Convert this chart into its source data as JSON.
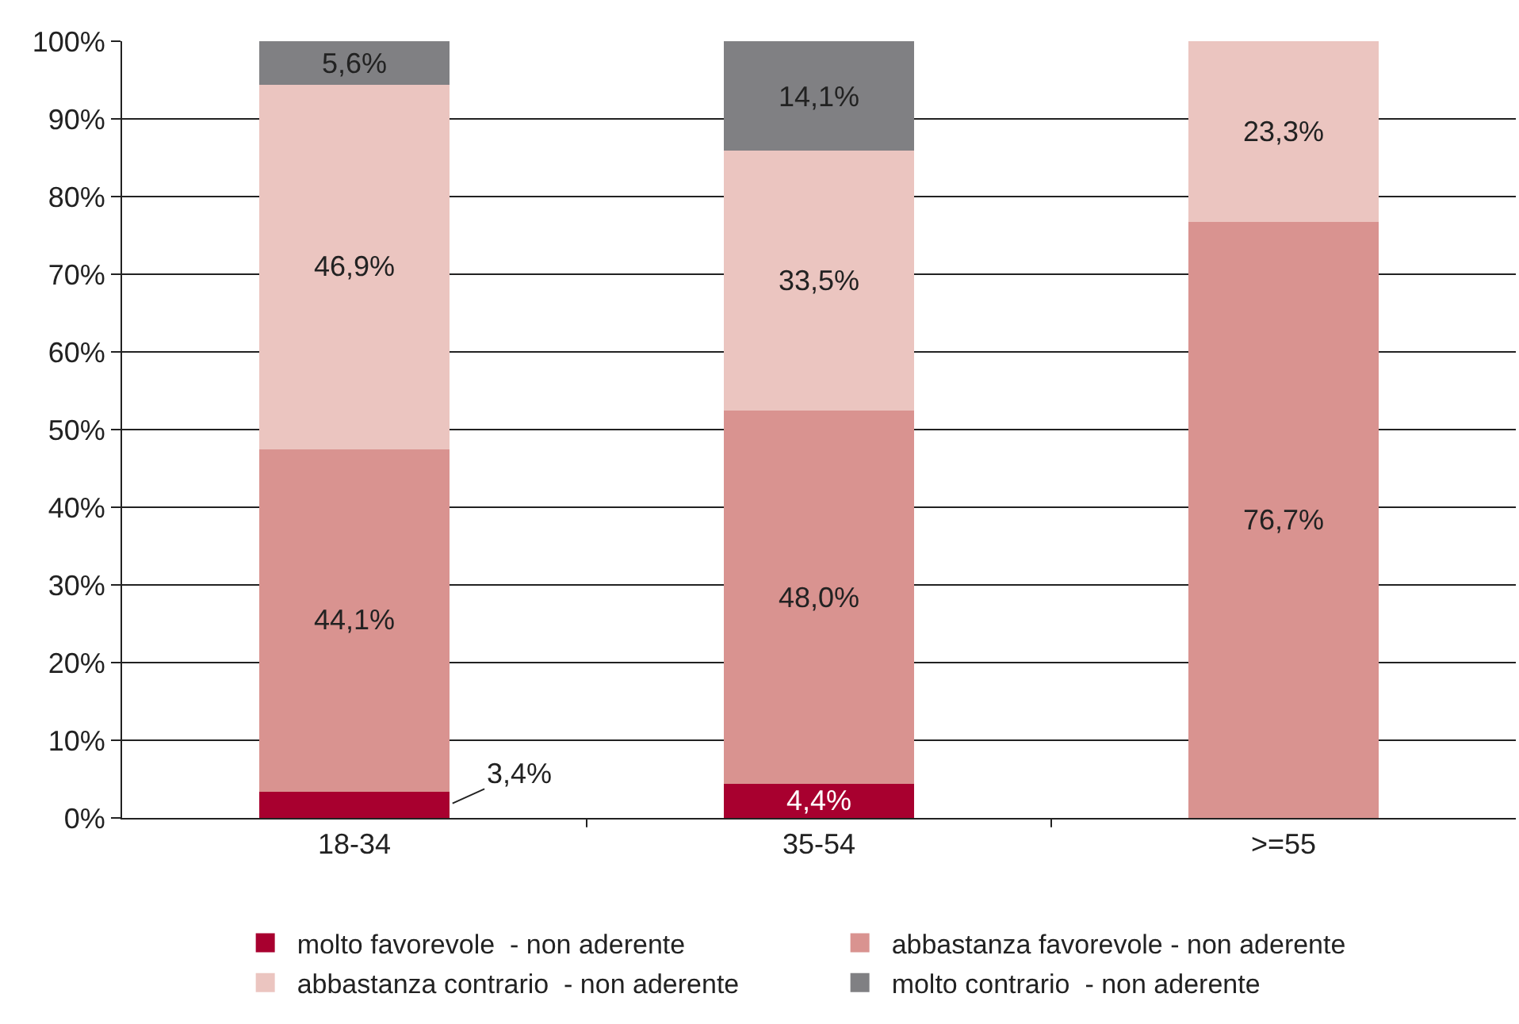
{
  "chart_data": {
    "type": "bar",
    "stacked": true,
    "categories": [
      "18-34",
      "35-54",
      ">=55"
    ],
    "series": [
      {
        "name": "molto favorevole  - non aderente",
        "color": "#a8002f",
        "values": [
          3.4,
          4.4,
          null
        ],
        "value_labels": [
          "3,4%",
          "4,4%",
          null
        ]
      },
      {
        "name": "abbastanza favorevole - non aderente",
        "color": "#d99390",
        "values": [
          44.1,
          48.0,
          76.7
        ],
        "value_labels": [
          "44,1%",
          "48,0%",
          "76,7%"
        ]
      },
      {
        "name": "abbastanza contrario  - non aderente",
        "color": "#ebc5c0",
        "values": [
          46.9,
          33.5,
          23.3
        ],
        "value_labels": [
          "46,9%",
          "33,5%",
          "23,3%"
        ]
      },
      {
        "name": "molto contrario  - non aderente",
        "color": "#808083",
        "values": [
          5.6,
          14.1,
          null
        ],
        "value_labels": [
          "5,6%",
          "14,1%",
          null
        ]
      }
    ],
    "ylim": [
      0,
      100
    ],
    "yticks": [
      {
        "value": 0,
        "label": "0%"
      },
      {
        "value": 10,
        "label": "10%"
      },
      {
        "value": 20,
        "label": "20%"
      },
      {
        "value": 30,
        "label": "30%"
      },
      {
        "value": 40,
        "label": "40%"
      },
      {
        "value": 50,
        "label": "50%"
      },
      {
        "value": 60,
        "label": "60%"
      },
      {
        "value": 70,
        "label": "70%"
      },
      {
        "value": 80,
        "label": "80%"
      },
      {
        "value": 90,
        "label": "90%"
      },
      {
        "value": 100,
        "label": "100%"
      }
    ],
    "grid": "y",
    "legend": "bottom"
  }
}
